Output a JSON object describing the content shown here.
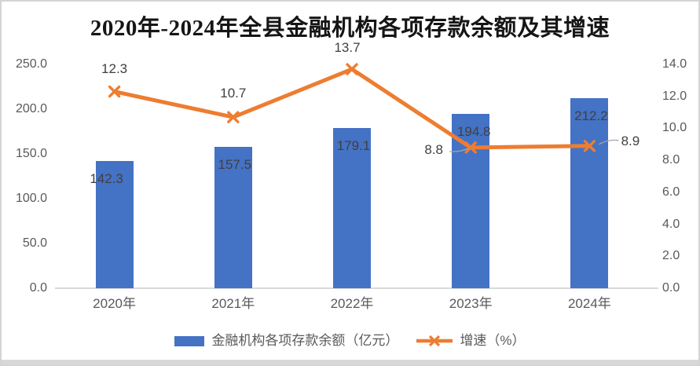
{
  "chart_data": {
    "type": "combo",
    "title": "2020年-2024年全县金融机构各项存款余额及其增速",
    "categories": [
      "2020年",
      "2021年",
      "2022年",
      "2023年",
      "2024年"
    ],
    "series": [
      {
        "name": "金融机构各项存款余额（亿元）",
        "type": "bar",
        "axis": "left",
        "values": [
          142.3,
          157.5,
          179.1,
          194.8,
          212.2
        ],
        "color": "#4472C4",
        "data_labels": [
          "142.3",
          "157.5",
          "179.1",
          "194.8",
          "212.2"
        ]
      },
      {
        "name": "增速（%）",
        "type": "line",
        "axis": "right",
        "values": [
          12.3,
          10.7,
          13.7,
          8.8,
          8.9
        ],
        "color": "#ED7D31",
        "marker": "x",
        "data_labels": [
          "12.3",
          "10.7",
          "13.7",
          "8.8",
          "8.9"
        ]
      }
    ],
    "left_axis": {
      "min": 0,
      "max": 250,
      "step": 50,
      "tick_format": "one_decimal",
      "tick_labels": [
        "0.0",
        "50.0",
        "100.0",
        "150.0",
        "200.0",
        "250.0"
      ]
    },
    "right_axis": {
      "min": 0,
      "max": 14,
      "step": 2,
      "tick_format": "one_decimal",
      "tick_labels": [
        "0.0",
        "2.0",
        "4.0",
        "6.0",
        "8.0",
        "10.0",
        "12.0",
        "14.0"
      ]
    },
    "legend_position": "bottom",
    "gridlines": false,
    "colors": {
      "bar": "#4472C4",
      "line": "#ED7D31",
      "axis_text": "#595959",
      "data_label_text": "#404040",
      "axis_line": "#D9D9D9",
      "frame_border": "#D4D4D4",
      "leader_line": "#A6A6A6"
    }
  }
}
